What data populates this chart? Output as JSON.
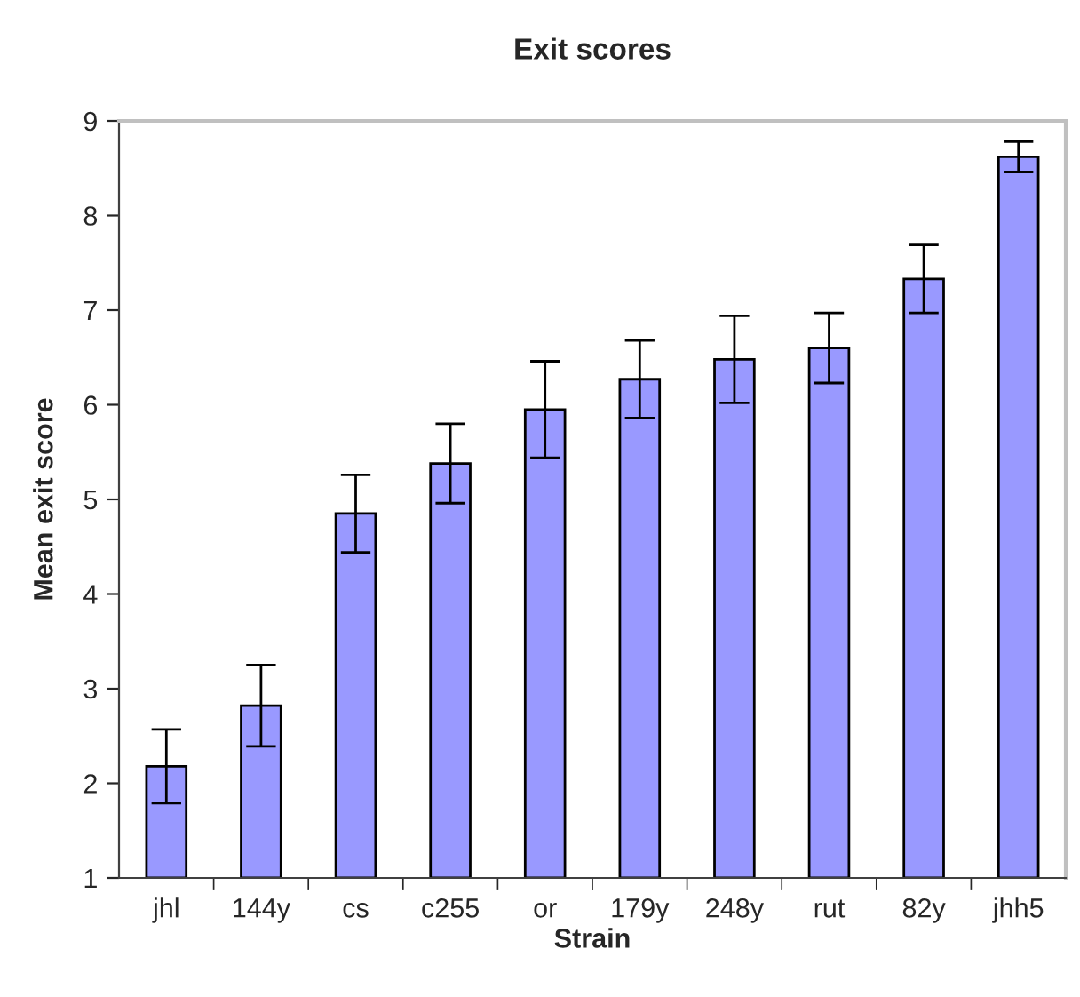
{
  "chart_data": {
    "type": "bar",
    "title": "Exit scores",
    "xlabel": "Strain",
    "ylabel": "Mean exit score",
    "categories": [
      "jhl",
      "144y",
      "cs",
      "c255",
      "or",
      "179y",
      "248y",
      "rut",
      "82y",
      "jhh5"
    ],
    "values": [
      2.18,
      2.82,
      4.85,
      5.38,
      5.95,
      6.27,
      6.48,
      6.6,
      7.33,
      8.62
    ],
    "errors": [
      0.39,
      0.43,
      0.41,
      0.42,
      0.51,
      0.41,
      0.46,
      0.37,
      0.36,
      0.16
    ],
    "color": "#9999ff",
    "ylim": [
      1,
      9
    ],
    "yticks": [
      1,
      2,
      3,
      4,
      5,
      6,
      7,
      8,
      9
    ],
    "grid": false,
    "legend": false
  }
}
